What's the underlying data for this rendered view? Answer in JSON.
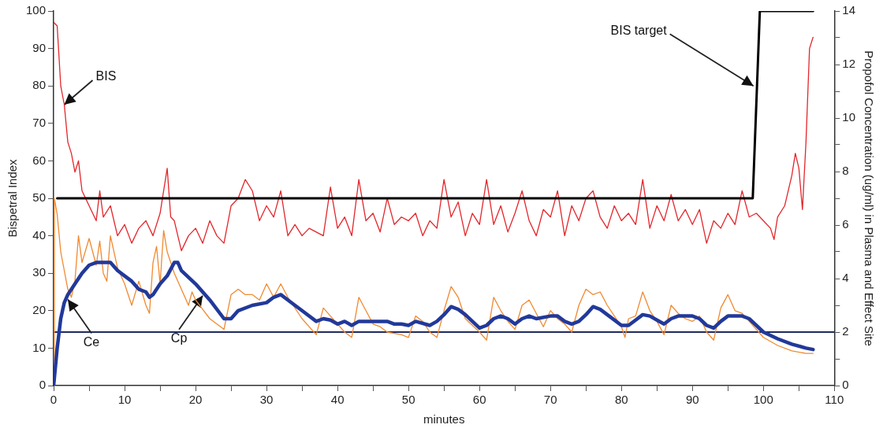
{
  "chart_data": {
    "type": "line",
    "xlabel": "minutes",
    "ylabel": "Bispetral Index",
    "y2label": "Propofol Concentration (ug/ml) in Plasma and Effect Site",
    "xlim": [
      0,
      110
    ],
    "xticks": [
      0,
      {
        "value": 5,
        "label": null
      },
      10,
      {
        "value": 15,
        "label": null
      },
      20,
      {
        "value": 25,
        "label": null
      },
      30,
      {
        "value": 35,
        "label": null
      },
      40,
      {
        "value": 45,
        "label": null
      },
      50,
      {
        "value": 55,
        "label": null
      },
      60,
      {
        "value": 65,
        "label": null
      },
      70,
      {
        "value": 75,
        "label": null
      },
      80,
      {
        "value": 85,
        "label": null
      },
      90,
      {
        "value": 95,
        "label": null
      },
      100,
      {
        "value": 105,
        "label": null
      },
      110
    ],
    "ylim": [
      0,
      100
    ],
    "yticks": [
      0,
      10,
      20,
      30,
      40,
      50,
      60,
      70,
      80,
      90,
      100
    ],
    "y2lim": [
      0,
      14
    ],
    "y2ticks": [
      0,
      {
        "value": 1,
        "label": null
      },
      2,
      {
        "value": 3,
        "label": null
      },
      4,
      {
        "value": 5,
        "label": null
      },
      6,
      {
        "value": 7,
        "label": null
      },
      8,
      {
        "value": 9,
        "label": null
      },
      10,
      {
        "value": 11,
        "label": null
      },
      12,
      {
        "value": 13,
        "label": null
      },
      14
    ],
    "grid": false,
    "legend": false,
    "marker": "none",
    "line_style": "solid",
    "ref_lines": [
      {
        "axis": "y2",
        "value": 2,
        "color": "#1f2a5e"
      }
    ],
    "annotations": [
      {
        "text": "BIS",
        "x": 1.5,
        "y": 75
      },
      {
        "text": "BIS target",
        "x": 98.6,
        "y": 80
      },
      {
        "text": "Ce",
        "x": 2,
        "y": 23
      },
      {
        "text": "Cp",
        "x": 21,
        "y": 24
      }
    ],
    "series": [
      {
        "color": "#e3262b",
        "x": [
          0,
          0.5,
          1,
          1.5,
          2,
          2.5,
          3,
          3.5,
          4,
          5,
          6,
          6.5,
          7,
          8,
          9,
          10,
          11,
          12,
          13,
          14,
          15,
          16,
          16.5,
          17,
          18,
          19,
          20,
          21,
          22,
          23,
          24,
          25,
          26,
          27,
          28,
          29,
          30,
          31,
          32,
          33,
          34,
          35,
          36,
          37,
          38,
          39,
          40,
          41,
          42,
          43,
          44,
          45,
          46,
          47,
          48,
          49,
          50,
          51,
          52,
          53,
          54,
          55,
          56,
          57,
          58,
          59,
          60,
          61,
          62,
          63,
          64,
          65,
          66,
          67,
          68,
          69,
          70,
          71,
          72,
          73,
          74,
          75,
          76,
          77,
          78,
          79,
          80,
          81,
          82,
          83,
          84,
          85,
          86,
          87,
          88,
          89,
          90,
          91,
          92,
          93,
          94,
          95,
          96,
          97,
          98,
          99,
          100,
          101,
          101.5,
          102,
          103,
          104,
          104.5,
          105,
          105.5,
          106,
          106.5,
          107
        ],
        "values": [
          97,
          96,
          80,
          75,
          65,
          62,
          57,
          60,
          52,
          48,
          44,
          52,
          45,
          48,
          40,
          43,
          38,
          42,
          44,
          40,
          46,
          58,
          45,
          44,
          36,
          40,
          42,
          38,
          44,
          40,
          38,
          48,
          50,
          55,
          52,
          44,
          48,
          45,
          52,
          40,
          43,
          40,
          42,
          41,
          40,
          53,
          42,
          45,
          40,
          55,
          44,
          46,
          41,
          50,
          43,
          45,
          44,
          46,
          40,
          44,
          42,
          55,
          45,
          49,
          40,
          46,
          43,
          55,
          43,
          48,
          41,
          46,
          52,
          44,
          40,
          47,
          45,
          52,
          40,
          48,
          44,
          50,
          52,
          45,
          42,
          48,
          44,
          46,
          43,
          55,
          42,
          48,
          44,
          51,
          44,
          47,
          43,
          47,
          38,
          44,
          42,
          46,
          43,
          52,
          45,
          46,
          44,
          42,
          39,
          45,
          48,
          56,
          62,
          58,
          47,
          65,
          90,
          93
        ]
      },
      {
        "color": "#000000",
        "x": [
          0.5,
          98.5,
          99.5,
          107
        ],
        "values": [
          50,
          50,
          100,
          100
        ]
      },
      {
        "color": "#f08a30",
        "axis": "y2",
        "x": [
          0,
          0.1,
          0.5,
          1,
          2,
          2.5,
          3,
          3.5,
          4,
          5,
          6,
          6.5,
          7,
          7.5,
          8,
          9,
          10,
          11,
          12,
          13,
          13.5,
          14,
          14.5,
          15,
          15.5,
          16,
          17,
          18,
          19,
          19.5,
          20,
          22,
          24,
          25,
          26,
          27,
          28,
          29,
          30,
          31,
          32,
          33,
          35,
          37,
          37.5,
          38,
          39,
          41,
          42,
          43,
          44,
          45,
          46,
          47,
          49,
          50,
          51,
          52,
          53,
          54,
          55,
          56,
          57,
          58,
          60,
          61,
          62,
          63,
          64,
          65,
          66,
          67,
          68,
          69,
          70,
          71,
          72,
          73,
          74,
          75,
          76,
          77,
          78,
          80,
          80.5,
          81,
          82,
          83,
          84,
          85,
          86,
          87,
          88,
          89,
          90,
          91,
          92,
          93,
          94,
          95,
          96,
          97,
          98,
          100,
          102,
          104,
          106,
          107
        ],
        "values": [
          0,
          7.0,
          6.4,
          5.0,
          3.6,
          3.3,
          3.9,
          5.6,
          4.6,
          5.5,
          4.5,
          5.4,
          4.2,
          3.9,
          5.6,
          4.4,
          3.8,
          3.0,
          3.9,
          3.0,
          2.7,
          4.6,
          5.2,
          3.8,
          5.8,
          5.0,
          4.2,
          3.6,
          3.0,
          3.5,
          3.2,
          2.5,
          2.1,
          3.4,
          3.6,
          3.4,
          3.4,
          3.2,
          3.8,
          3.3,
          3.8,
          3.3,
          2.5,
          1.9,
          2.4,
          2.9,
          2.6,
          2.0,
          1.8,
          3.3,
          2.8,
          2.3,
          2.2,
          2.0,
          1.9,
          1.8,
          2.6,
          2.4,
          2.0,
          1.8,
          2.8,
          3.7,
          3.3,
          2.5,
          2.0,
          1.7,
          3.3,
          2.8,
          2.4,
          2.1,
          3.0,
          3.2,
          2.7,
          2.2,
          2.8,
          2.5,
          2.3,
          2.0,
          3.0,
          3.6,
          3.4,
          3.5,
          3.0,
          2.2,
          1.8,
          2.5,
          2.6,
          3.5,
          2.8,
          2.4,
          1.9,
          3.0,
          2.7,
          2.5,
          2.4,
          2.6,
          2.0,
          1.7,
          2.9,
          3.4,
          2.8,
          2.7,
          2.4,
          1.8,
          1.5,
          1.3,
          1.2,
          1.2
        ]
      },
      {
        "color": "#21399a",
        "axis": "y2",
        "x": [
          0,
          0.5,
          1,
          1.5,
          2,
          3,
          4,
          5,
          6,
          7,
          8,
          9,
          10,
          11,
          12,
          13,
          13.5,
          14,
          15,
          16,
          17,
          17.5,
          18,
          20,
          22,
          24,
          25,
          26,
          28,
          30,
          31,
          32,
          33,
          35,
          37,
          38,
          39,
          40,
          41,
          42,
          43,
          45,
          47,
          48,
          49,
          50,
          51,
          53,
          54,
          55,
          56,
          57,
          58,
          60,
          61,
          62,
          63,
          64,
          65,
          66,
          67,
          68,
          70,
          71,
          72,
          73,
          74,
          75,
          76,
          77,
          78,
          80,
          81,
          82,
          83,
          84,
          85,
          86,
          87,
          88,
          90,
          91,
          92,
          93,
          94,
          95,
          97,
          98,
          99,
          100,
          102,
          104,
          106,
          107
        ],
        "values": [
          0,
          1.4,
          2.5,
          3.1,
          3.4,
          3.8,
          4.2,
          4.5,
          4.6,
          4.6,
          4.6,
          4.3,
          4.1,
          3.9,
          3.6,
          3.5,
          3.3,
          3.4,
          3.8,
          4.1,
          4.6,
          4.6,
          4.3,
          3.8,
          3.2,
          2.5,
          2.5,
          2.8,
          3.0,
          3.1,
          3.3,
          3.4,
          3.2,
          2.8,
          2.4,
          2.5,
          2.45,
          2.3,
          2.4,
          2.25,
          2.4,
          2.4,
          2.4,
          2.3,
          2.3,
          2.25,
          2.4,
          2.25,
          2.4,
          2.65,
          2.95,
          2.85,
          2.65,
          2.15,
          2.25,
          2.5,
          2.6,
          2.5,
          2.3,
          2.5,
          2.6,
          2.5,
          2.6,
          2.6,
          2.4,
          2.3,
          2.4,
          2.65,
          2.95,
          2.85,
          2.65,
          2.25,
          2.25,
          2.45,
          2.65,
          2.6,
          2.45,
          2.3,
          2.5,
          2.6,
          2.6,
          2.5,
          2.25,
          2.15,
          2.4,
          2.6,
          2.6,
          2.5,
          2.25,
          2.0,
          1.75,
          1.55,
          1.4,
          1.35
        ]
      }
    ]
  }
}
